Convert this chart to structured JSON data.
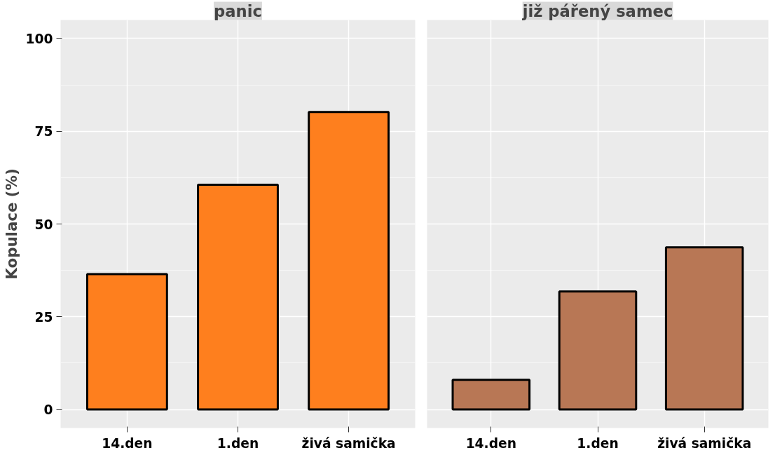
{
  "chart_data": [
    {
      "type": "bar",
      "title": "panic",
      "ylabel": "Kopulace (%)",
      "categories": [
        "14.den",
        "1.den",
        "živá samička"
      ],
      "values": [
        36.5,
        60.6,
        80.2
      ],
      "color": "#fe7f1e",
      "ylim": [
        -5,
        105
      ],
      "yticks": [
        0,
        25,
        50,
        75,
        100
      ],
      "grid": true
    },
    {
      "type": "bar",
      "title": "již pářený samec",
      "categories": [
        "14.den",
        "1.den",
        "živá samička"
      ],
      "values": [
        8.0,
        31.8,
        43.7
      ],
      "color": "#b87755",
      "ylim": [
        -5,
        105
      ],
      "yticks": [
        0,
        25,
        50,
        75,
        100
      ],
      "grid": true,
      "tick_labels": "x"
    }
  ]
}
